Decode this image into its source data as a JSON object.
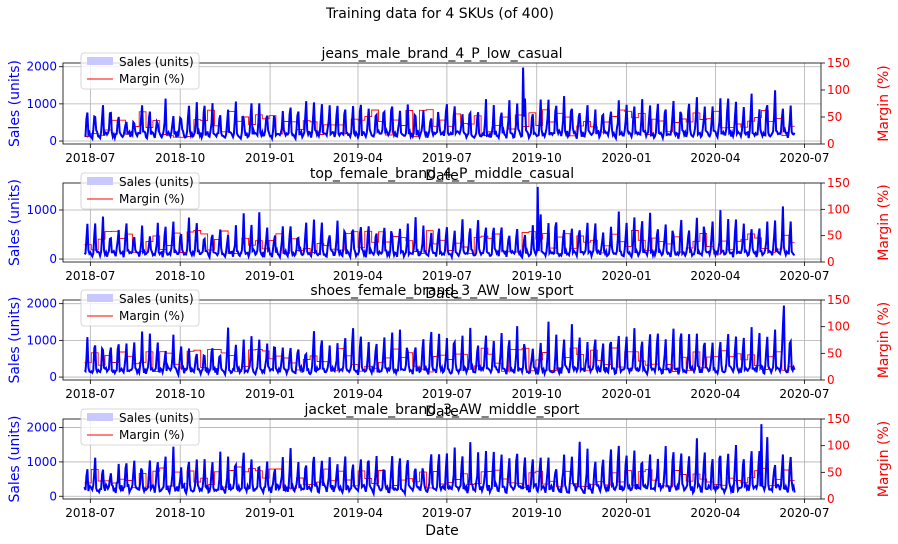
{
  "figure": {
    "suptitle": "Training data for 4 SKUs (of 400)"
  },
  "style": {
    "sales_color": "#0000ff",
    "margin_color": "#ff0000",
    "grid_color": "#b0b0b0",
    "legend_sales_patch": "#c9c9ff"
  },
  "chart_data": [
    {
      "type": "line",
      "title": "jeans_male_brand_4_P_low_casual",
      "xlabel": "Date",
      "xlim": [
        "2018-06-03",
        "2020-07-18"
      ],
      "x_ticks": [
        "2018-07",
        "2018-10",
        "2019-01",
        "2019-04",
        "2019-07",
        "2019-10",
        "2020-01",
        "2020-04",
        "2020-07"
      ],
      "y_left": {
        "label": "Sales (units)",
        "lim": [
          -80,
          2100
        ],
        "ticks": [
          0,
          1000,
          2000
        ]
      },
      "y_right": {
        "label": "Margin (%)",
        "lim": [
          0,
          150
        ],
        "ticks": [
          0,
          50,
          100,
          150
        ]
      },
      "legend": {
        "placement": "upper-left",
        "entries": [
          "Sales (units)",
          "Margin (%)"
        ]
      },
      "grid": true,
      "date_range": [
        "2018-06-25",
        "2020-06-21"
      ],
      "series": [
        {
          "name": "Sales (units)",
          "axis": "left",
          "period_days": 8,
          "base": 200,
          "peak": 1050,
          "trend": 300,
          "spike_peak": 1980,
          "spike_date": "2019-09-17"
        },
        {
          "name": "Margin (%)",
          "axis": "right",
          "step_days": 7,
          "levels": [
            [
              12,
              40
            ],
            [
              40,
              65
            ]
          ]
        }
      ]
    },
    {
      "type": "line",
      "title": "top_female_brand_4_P_middle_casual",
      "xlabel": "Date",
      "xlim": [
        "2018-06-03",
        "2020-07-18"
      ],
      "x_ticks": [
        "2018-07",
        "2018-10",
        "2019-01",
        "2019-04",
        "2019-07",
        "2019-10",
        "2020-01",
        "2020-04",
        "2020-07"
      ],
      "y_left": {
        "label": "Sales (units)",
        "lim": [
          -60,
          1550
        ],
        "ticks": [
          0,
          1000
        ]
      },
      "y_right": {
        "label": "Margin (%)",
        "lim": [
          0,
          150
        ],
        "ticks": [
          0,
          50,
          100,
          150
        ]
      },
      "legend": {
        "placement": "upper-left",
        "entries": [
          "Sales (units)",
          "Margin (%)"
        ]
      },
      "grid": true,
      "date_range": [
        "2018-06-25",
        "2020-06-21"
      ],
      "series": [
        {
          "name": "Sales (units)",
          "axis": "left",
          "period_days": 8,
          "base": 120,
          "peak": 900,
          "trend": 150,
          "spike_peak": 1470,
          "spike_date": "2019-10-02"
        },
        {
          "name": "Margin (%)",
          "axis": "right",
          "step_days": 7,
          "levels": [
            [
              15,
              35
            ],
            [
              35,
              60
            ]
          ]
        }
      ]
    },
    {
      "type": "line",
      "title": "shoes_female_brand_3_AW_low_sport",
      "xlabel": "Date",
      "xlim": [
        "2018-06-03",
        "2020-07-18"
      ],
      "x_ticks": [
        "2018-07",
        "2018-10",
        "2019-01",
        "2019-04",
        "2019-07",
        "2019-10",
        "2020-01",
        "2020-04",
        "2020-07"
      ],
      "y_left": {
        "label": "Sales (units)",
        "lim": [
          -80,
          2100
        ],
        "ticks": [
          0,
          1000,
          2000
        ]
      },
      "y_right": {
        "label": "Margin (%)",
        "lim": [
          0,
          150
        ],
        "ticks": [
          0,
          50,
          100,
          150
        ]
      },
      "legend": {
        "placement": "upper-left",
        "entries": [
          "Sales (units)",
          "Margin (%)"
        ]
      },
      "grid": true,
      "date_range": [
        "2018-06-25",
        "2020-06-21"
      ],
      "series": [
        {
          "name": "Sales (units)",
          "axis": "left",
          "period_days": 8,
          "base": 200,
          "peak": 1150,
          "trend": 500,
          "spike_peak": 1950,
          "spike_date": "2020-06-10"
        },
        {
          "name": "Margin (%)",
          "axis": "right",
          "step_days": 7,
          "levels": [
            [
              15,
              40
            ],
            [
              40,
              60
            ]
          ]
        }
      ]
    },
    {
      "type": "line",
      "title": "jacket_male_brand_3_AW_middle_sport",
      "xlabel": "Date",
      "xlim": [
        "2018-06-03",
        "2020-07-18"
      ],
      "x_ticks": [
        "2018-07",
        "2018-10",
        "2019-01",
        "2019-04",
        "2019-07",
        "2019-10",
        "2020-01",
        "2020-04",
        "2020-07"
      ],
      "y_left": {
        "label": "Sales (units)",
        "lim": [
          -80,
          2250
        ],
        "ticks": [
          0,
          1000,
          2000
        ]
      },
      "y_right": {
        "label": "Margin (%)",
        "lim": [
          0,
          150
        ],
        "ticks": [
          0,
          50,
          100,
          150
        ]
      },
      "legend": {
        "placement": "upper-left",
        "entries": [
          "Sales (units)",
          "Margin (%)"
        ]
      },
      "grid": true,
      "date_range": [
        "2018-06-25",
        "2020-06-21"
      ],
      "series": [
        {
          "name": "Sales (units)",
          "axis": "left",
          "period_days": 8,
          "base": 250,
          "peak": 1300,
          "trend": 500,
          "spike_peak": 2100,
          "spike_date": "2020-05-18"
        },
        {
          "name": "Margin (%)",
          "axis": "right",
          "step_days": 7,
          "levels": [
            [
              20,
              40
            ],
            [
              45,
              60
            ]
          ]
        }
      ]
    }
  ]
}
